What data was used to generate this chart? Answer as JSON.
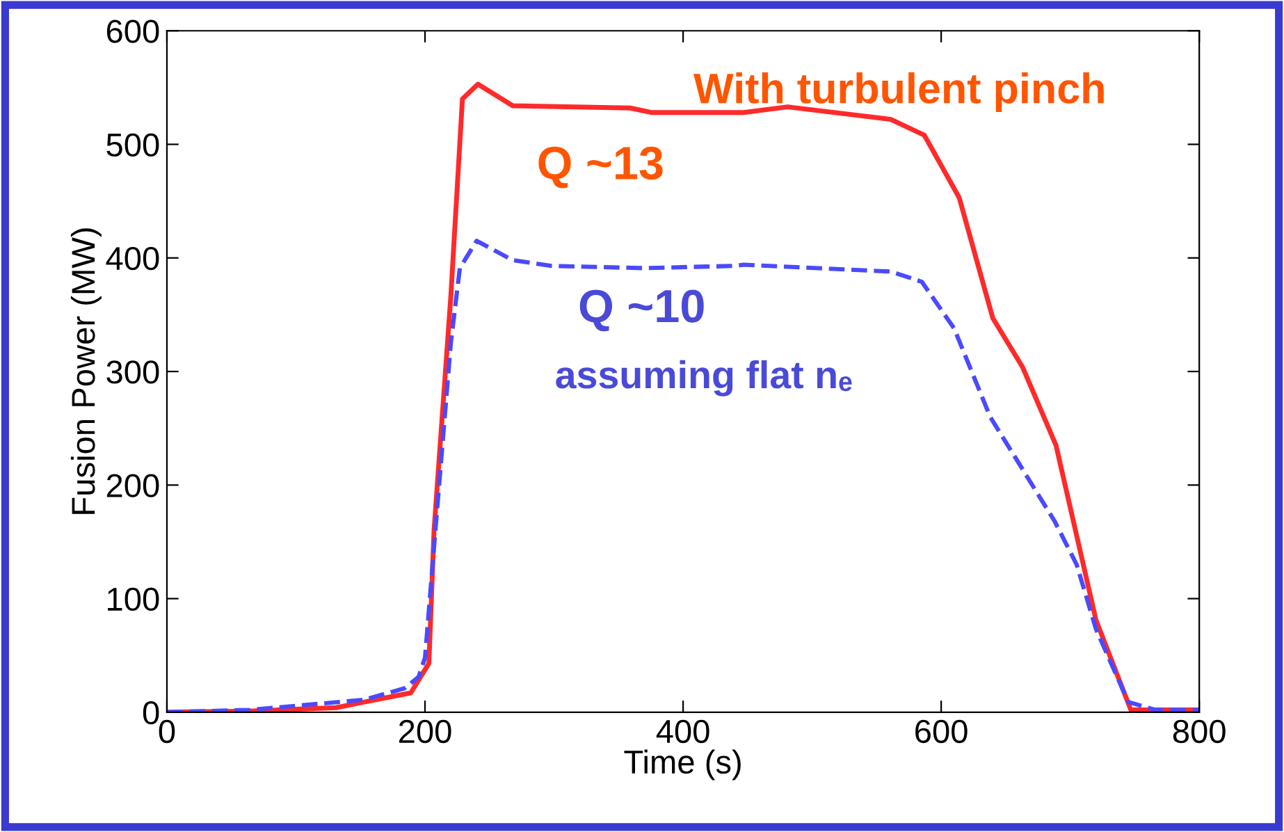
{
  "chart_data": {
    "type": "line",
    "xlabel": "Time (s)",
    "ylabel": "Fusion Power (MW)",
    "xlim": [
      0,
      800
    ],
    "xticks": [
      0,
      200,
      400,
      600,
      800
    ],
    "ylim": [
      0,
      600
    ],
    "yticks": [
      0,
      100,
      200,
      300,
      400,
      500,
      600
    ],
    "grid": false,
    "legend": false,
    "annotations": [
      "With turbulent pinch",
      "Q ~13",
      "Q ~10",
      "assuming flat nₑ"
    ],
    "series": [
      {
        "color": "#ff2a2a",
        "line_style": "solid",
        "x": [
          0,
          64,
          131,
          189,
          203,
          207,
          220,
          229,
          241,
          268,
          359,
          376,
          447,
          481,
          561,
          587,
          614,
          640,
          663,
          689,
          720,
          747,
          800
        ],
        "values": [
          0,
          1,
          4,
          17,
          43,
          160,
          366,
          540,
          553,
          534,
          532,
          528,
          528,
          533,
          522,
          508,
          453,
          347,
          304,
          235,
          81,
          2,
          2
        ]
      },
      {
        "color": "#4a4aff",
        "line_style": "dashed",
        "x": [
          0,
          64,
          153,
          184,
          195,
          200,
          211,
          220,
          227,
          240,
          268,
          298,
          370,
          440,
          447,
          561,
          585,
          610,
          638,
          688,
          705,
          720,
          745,
          766,
          800
        ],
        "values": [
          0,
          2,
          11,
          21,
          31,
          48,
          201,
          325,
          391,
          415,
          398,
          393,
          391,
          393,
          394,
          388,
          379,
          338,
          260,
          168,
          130,
          73,
          9,
          2,
          2
        ]
      }
    ]
  }
}
